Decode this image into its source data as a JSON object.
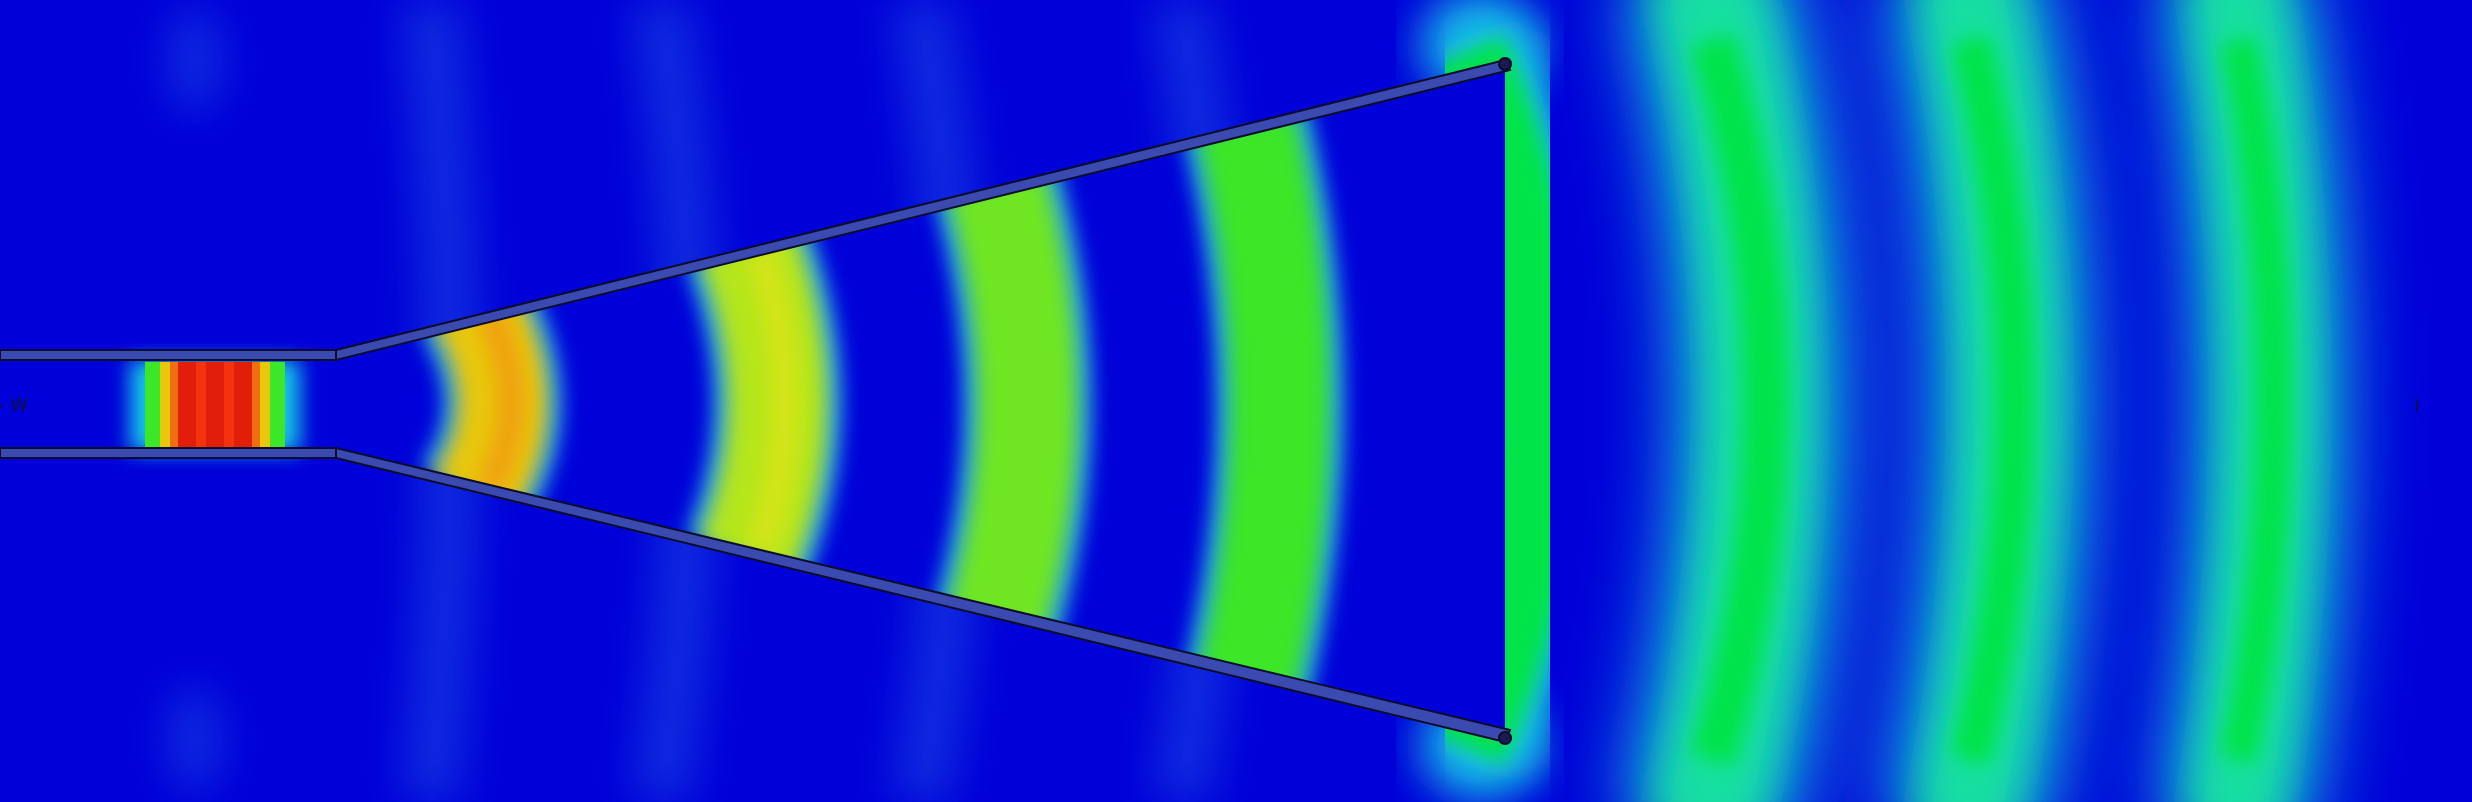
{
  "field": {
    "colors": {
      "background": "#0000d8",
      "background_soft": "#0a2ee0",
      "red": "#e01e0a",
      "orange": "#ee6e10",
      "yellow": "#e8c80c",
      "yellow_green": "#b4e61c",
      "green": "#3ce628",
      "bright_green": "#06e34a",
      "aqua": "#12e0a0",
      "cyan": "#16c8e6",
      "wall": "#3a4ab0",
      "wall_edge": "#0c0c2c"
    }
  },
  "labels": {
    "input_port": "- W",
    "output_port": "I"
  },
  "icons": {
    "waveguide": "horn-antenna-outline"
  }
}
